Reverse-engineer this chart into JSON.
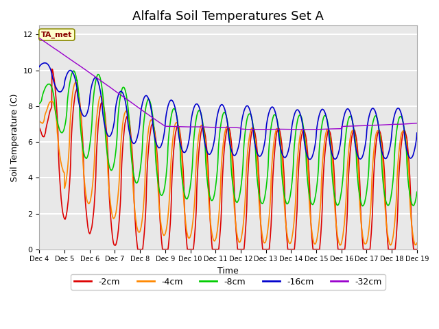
{
  "title": "Alfalfa Soil Temperatures Set A",
  "ylabel": "Soil Temperature (C)",
  "xlabel": "Time",
  "annotation_text": "TA_met",
  "annotation_color": "#880000",
  "annotation_bg": "#ffffcc",
  "annotation_border": "#888800",
  "ylim": [
    0,
    12.5
  ],
  "yticks": [
    0,
    2,
    4,
    6,
    8,
    10,
    12
  ],
  "xtick_labels": [
    "Dec 4",
    "Dec 5",
    "Dec 6",
    "Dec 7",
    "Dec 8",
    "Dec 9",
    "Dec 10",
    "Dec 11",
    "Dec 12",
    "Dec 13",
    "Dec 14",
    "Dec 15",
    "Dec 16",
    "Dec 17",
    "Dec 18",
    "Dec 19"
  ],
  "n_days": 15,
  "n_pts": 1440,
  "series_colors": [
    "#dd0000",
    "#ff8800",
    "#00cc00",
    "#0000cc",
    "#9900cc"
  ],
  "series_labels": [
    "-2cm",
    "-4cm",
    "-8cm",
    "-16cm",
    "-32cm"
  ],
  "background_color": "#e8e8e8",
  "plot_bg": "#e8e8e8",
  "fig_bg": "#ffffff",
  "grid_color": "#ffffff",
  "title_fontsize": 13,
  "label_fontsize": 9,
  "tick_fontsize": 8
}
